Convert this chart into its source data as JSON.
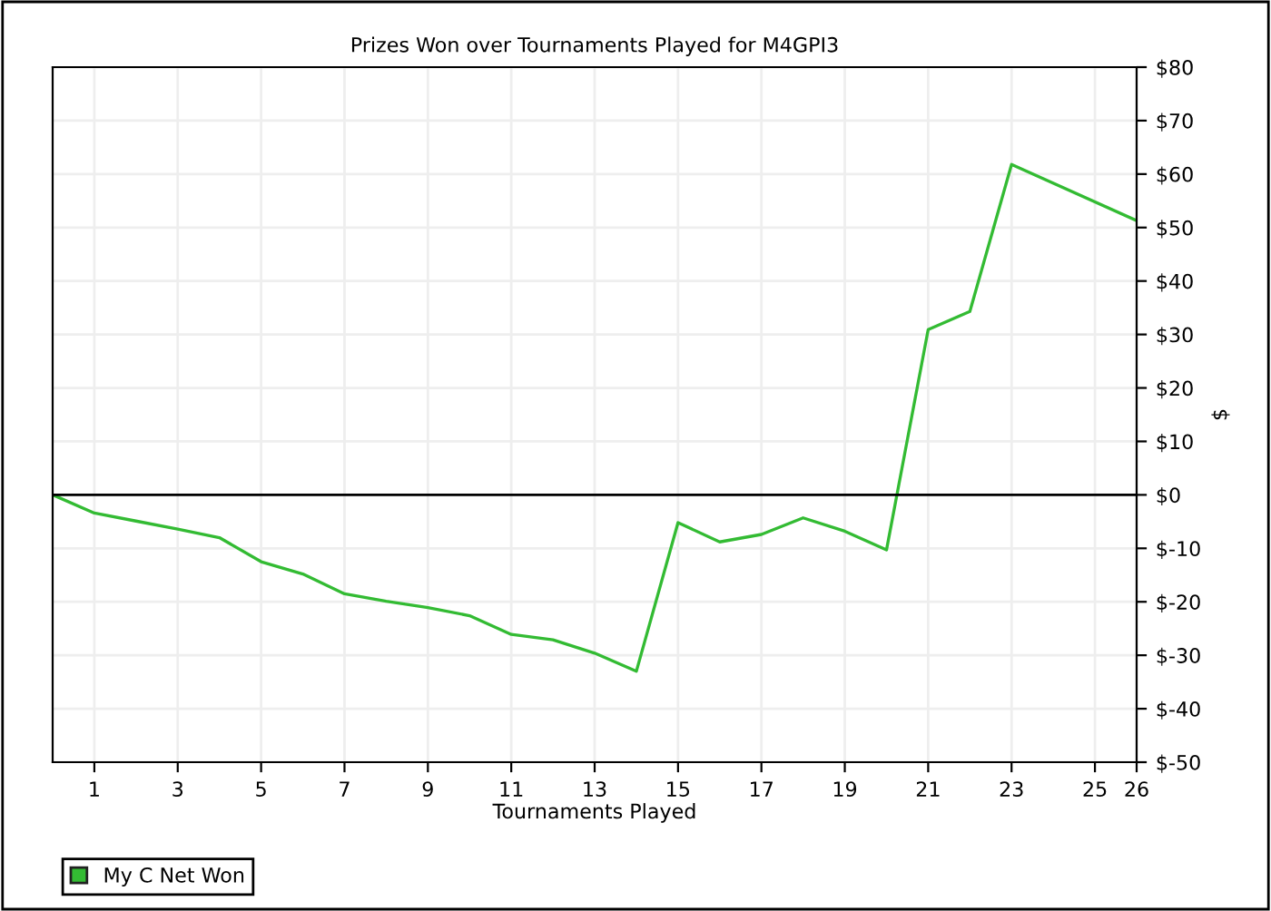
{
  "chart_data": {
    "type": "line",
    "title": "Prizes Won over Tournaments Played for M4GPI3",
    "xlabel": "Tournaments Played",
    "ylabel": "$",
    "x": [
      0,
      1,
      2,
      3,
      4,
      5,
      6,
      7,
      8,
      9,
      10,
      11,
      12,
      13,
      14,
      15,
      16,
      17,
      18,
      19,
      20,
      21,
      22,
      23,
      26
    ],
    "series": [
      {
        "name": "My C Net Won",
        "color": "#33bb33",
        "values": [
          0,
          -3.4,
          -4.9,
          -6.4,
          -8.0,
          -12.5,
          -14.8,
          -18.5,
          -19.9,
          -21.1,
          -22.6,
          -26.1,
          -27.1,
          -29.6,
          -33.0,
          -5.2,
          -8.8,
          -7.4,
          -4.3,
          -6.8,
          -10.3,
          30.9,
          34.3,
          61.8,
          51.3
        ]
      }
    ],
    "xlim": [
      0,
      26
    ],
    "xticks": [
      1,
      3,
      5,
      7,
      9,
      11,
      13,
      15,
      17,
      19,
      21,
      23,
      25,
      26
    ],
    "ylim": [
      -50,
      80
    ],
    "yticks": [
      {
        "value": -50,
        "label": "$-50"
      },
      {
        "value": -40,
        "label": "$-40"
      },
      {
        "value": -30,
        "label": "$-30"
      },
      {
        "value": -20,
        "label": "$-20"
      },
      {
        "value": -10,
        "label": "$-10"
      },
      {
        "value": 0,
        "label": "$0"
      },
      {
        "value": 10,
        "label": "$10"
      },
      {
        "value": 20,
        "label": "$20"
      },
      {
        "value": 30,
        "label": "$30"
      },
      {
        "value": 40,
        "label": "$40"
      },
      {
        "value": 50,
        "label": "$50"
      },
      {
        "value": 60,
        "label": "$60"
      },
      {
        "value": 70,
        "label": "$70"
      },
      {
        "value": 80,
        "label": "$80"
      }
    ],
    "ref_lines": [
      {
        "axis": "y",
        "value": 0,
        "color": "#000000"
      }
    ],
    "grid": true,
    "legend": "bottom left",
    "marker": "none",
    "line_style": "solid"
  }
}
